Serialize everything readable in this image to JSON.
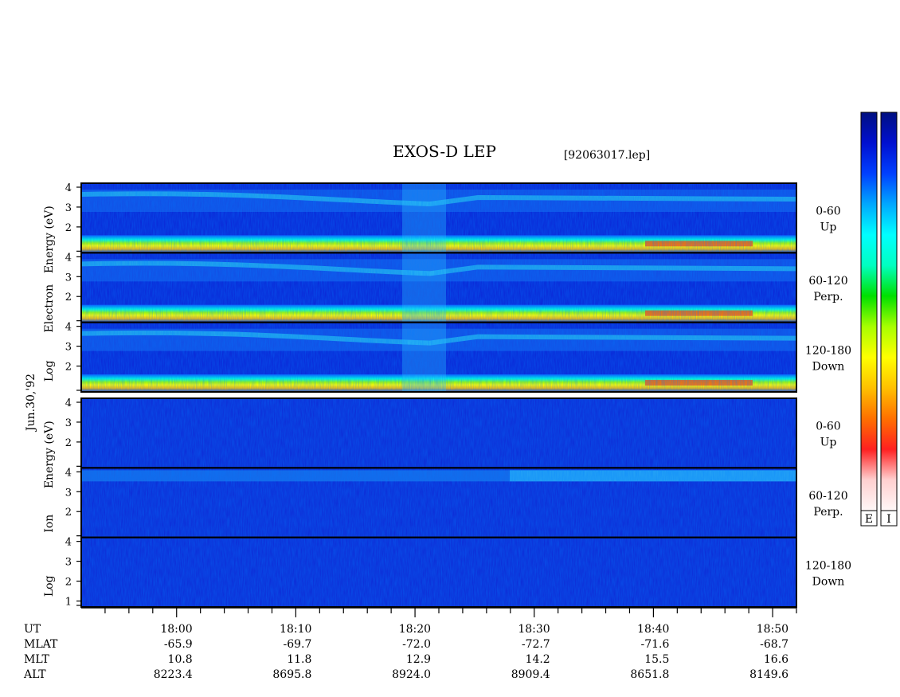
{
  "chart_data": {
    "type": "heatmap",
    "title": "EXOS-D LEP",
    "subtitle": "[92063017.lep]",
    "date_label": "Jun.30,'92",
    "x_ticks": [
      "18:00",
      "18:10",
      "18:20",
      "18:30",
      "18:40",
      "18:50"
    ],
    "x_range": [
      "17:52",
      "18:52"
    ],
    "y_ticks": [
      "2",
      "3",
      "4"
    ],
    "y_ticks_low": [
      "2",
      "3",
      "4"
    ],
    "y_ticks_bottom": [
      "2",
      "3",
      "4"
    ],
    "ion_bottom_ticks": [
      "1",
      "2",
      "3",
      "4"
    ],
    "ion_ticks": [
      "2",
      "3",
      "4"
    ],
    "electron": {
      "ylabel_words": [
        "Log",
        "Electron",
        "Energy (eV)"
      ],
      "panels": [
        {
          "range": "0-60",
          "dir": "Up"
        },
        {
          "range": "60-120",
          "dir": "Perp."
        },
        {
          "range": "120-180",
          "dir": "Down"
        }
      ]
    },
    "ion": {
      "ylabel_words": [
        "Log",
        "Ion",
        "Energy (eV)"
      ],
      "panels": [
        {
          "range": "0-60",
          "dir": "Up"
        },
        {
          "range": "60-120",
          "dir": "Perp."
        },
        {
          "range": "120-180",
          "dir": "Down"
        }
      ]
    },
    "ephemeris": {
      "rows": [
        {
          "label": "UT",
          "values": [
            "18:00",
            "18:10",
            "18:20",
            "18:30",
            "18:40",
            "18:50"
          ]
        },
        {
          "label": "MLAT",
          "values": [
            "-65.9",
            "-69.7",
            "-72.0",
            "-72.7",
            "-71.6",
            "-68.7"
          ]
        },
        {
          "label": "MLT",
          "values": [
            "10.8",
            "11.8",
            "12.9",
            "14.2",
            "15.5",
            "16.6"
          ]
        },
        {
          "label": "ALT",
          "values": [
            "8223.4",
            "8695.8",
            "8924.0",
            "8909.4",
            "8651.8",
            "8149.6"
          ]
        }
      ]
    },
    "colorbars": [
      {
        "label": "E"
      },
      {
        "label": "I"
      }
    ],
    "colormap": [
      "#fff7f7",
      "#ffd0d0",
      "#ff2020",
      "#ff7000",
      "#ffc000",
      "#ffff00",
      "#a8ff00",
      "#00e000",
      "#00ffc0",
      "#00ffff",
      "#00a8ff",
      "#0040ff",
      "#0010d0",
      "#001080"
    ]
  }
}
